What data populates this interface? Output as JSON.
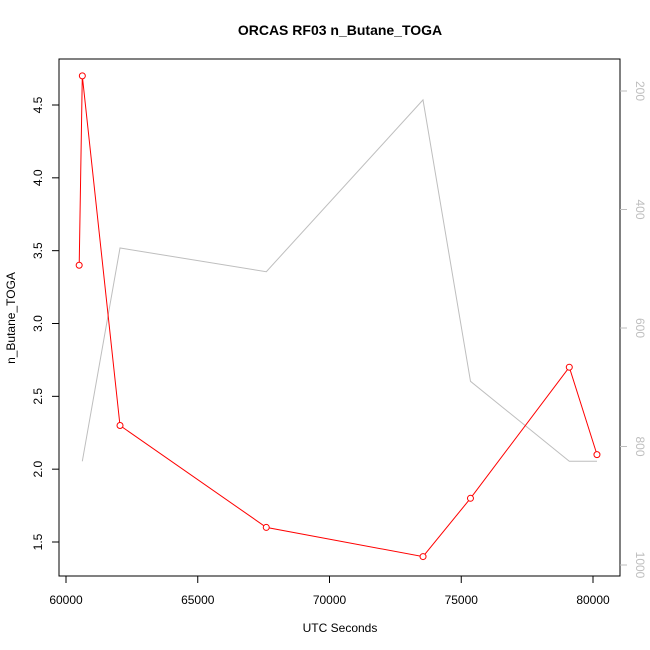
{
  "chart_data": {
    "type": "line",
    "title": "ORCAS RF03 n_Butane_TOGA",
    "xlabel": "UTC Seconds",
    "ylabel": "n_Butane_TOGA",
    "xlim": [
      60000,
      80000
    ],
    "ylim": [
      1.5,
      4.5
    ],
    "x_ticks": [
      60000,
      65000,
      70000,
      75000,
      80000
    ],
    "y_ticks": [
      1.5,
      2.0,
      2.5,
      3.0,
      3.5,
      4.0,
      4.5
    ],
    "y_tick_labels": [
      "1.5",
      "2.0",
      "2.5",
      "3.0",
      "3.5",
      "4.0",
      "4.5"
    ],
    "y2_ticks": [
      200,
      400,
      600,
      800,
      1000
    ],
    "y2_reversed": true,
    "series": [
      {
        "color": "#ff0000",
        "marker": "circle",
        "x": [
          60500,
          60620,
          62050,
          67600,
          73550,
          75350,
          79100,
          80150
        ],
        "y": [
          3.4,
          4.7,
          2.3,
          1.6,
          1.4,
          1.8,
          2.7,
          2.1
        ]
      },
      {
        "color": "#bebebe",
        "axis": "right",
        "x": [
          60620,
          62050,
          67600,
          73550,
          75350,
          79100,
          80150
        ],
        "y": [
          825,
          465,
          505,
          215,
          690,
          825,
          825
        ]
      }
    ]
  }
}
